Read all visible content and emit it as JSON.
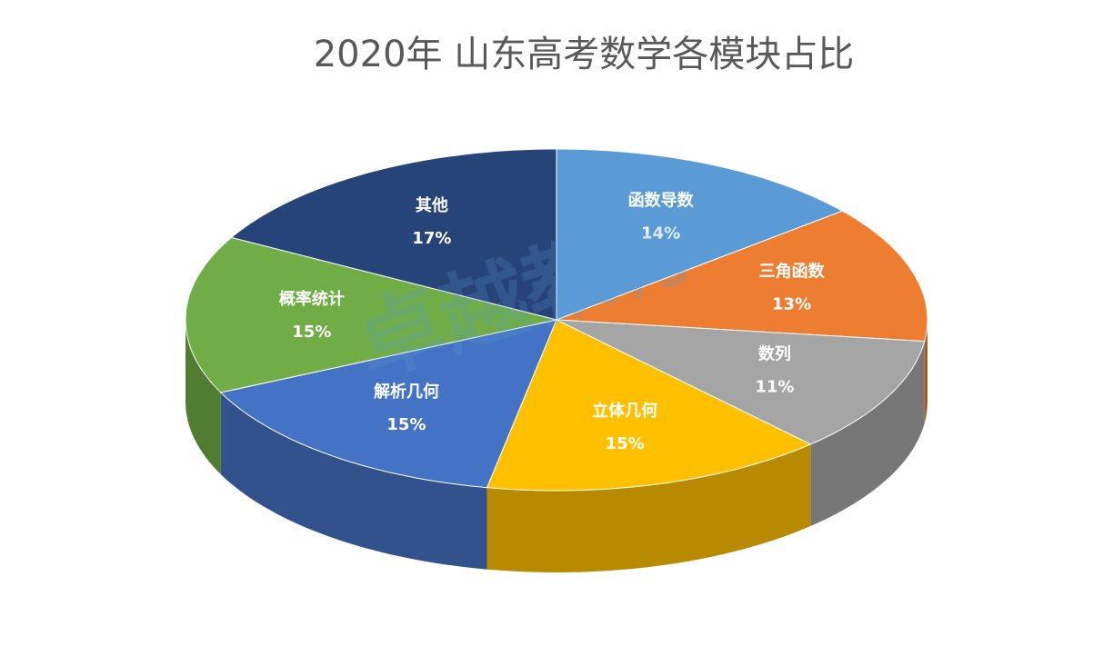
{
  "chart_data": {
    "type": "pie3d",
    "title": "2020年 山东高考数学各模块占比",
    "categories": [
      "函数导数",
      "三角函数",
      "数列",
      "立体几何",
      "解析几何",
      "概率统计",
      "其他"
    ],
    "values": [
      14,
      13,
      11,
      15,
      15,
      15,
      17
    ],
    "value_labels": [
      "14%",
      "13%",
      "11%",
      "15%",
      "15%",
      "15%",
      "17%"
    ],
    "colors": [
      "#5b9bd5",
      "#ed7d31",
      "#a5a5a5",
      "#ffc000",
      "#4472c4",
      "#70ad47",
      "#264478"
    ],
    "watermark": "卓越教育"
  }
}
